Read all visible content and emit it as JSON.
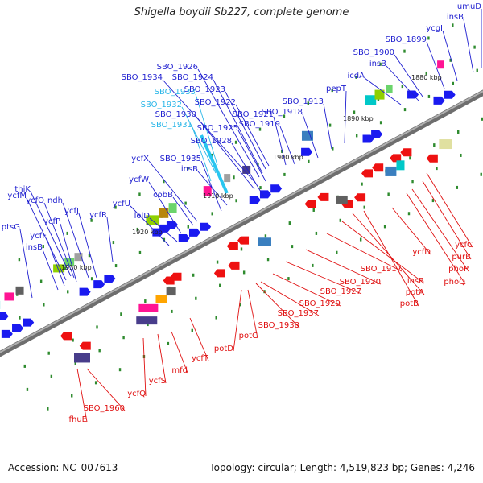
{
  "title": "Shigella boydii Sb227, complete genome",
  "footer": {
    "accession": "Accession: NC_007613",
    "summary": "Topology: circular; Length: 4,519,823 bp; Genes: 4,246"
  },
  "colors": {
    "forward_label": "#1f1fd0",
    "reverse_label": "#e01010",
    "rna_label": "#29b6e8",
    "backbone": "#7a7a7a",
    "tick": "#2e8b2e"
  },
  "kbp_ticks": [
    "1930 kbp",
    "1920 kbp",
    "1910 kbp",
    "1900 kbp",
    "1890 kbp",
    "1880 kbp"
  ],
  "forward_labels": [
    "ptsG",
    "insB",
    "ycfF",
    "ycfP",
    "ycfO",
    "thiK",
    "ycfM",
    "ndh",
    "ycfJ",
    "ycfR",
    "ycfU",
    "lolD",
    "ycfW",
    "cobB",
    "ycfX",
    "SBO_1935",
    "insB",
    "SBO_1928",
    "SBO_1930",
    "SBO_1934",
    "SBO_1926",
    "SBO_1924",
    "SBO_1923",
    "SBO_1922",
    "SBO_1921",
    "SBO_1925",
    "SBO_1919",
    "SBO_1918",
    "SBO_1913",
    "pepT",
    "icdA",
    "insB",
    "SBO_1900",
    "SBO_1899",
    "ycgI",
    "insB",
    "umuD"
  ],
  "rna_labels": [
    "SBO_1933",
    "SBO_1932",
    "SBO_1931"
  ],
  "reverse_labels": [
    "fhuE",
    "SBO_1960",
    "ycfQ",
    "ycfS",
    "mfd",
    "ycfT",
    "potD",
    "potC",
    "SBO_1938",
    "SBO_1937",
    "SBO_1929",
    "SBO_1927",
    "SBO_1920",
    "SBO_1917",
    "insB",
    "potA",
    "potB",
    "ycfD",
    "phoQ",
    "phoP",
    "purB",
    "ycfC"
  ]
}
